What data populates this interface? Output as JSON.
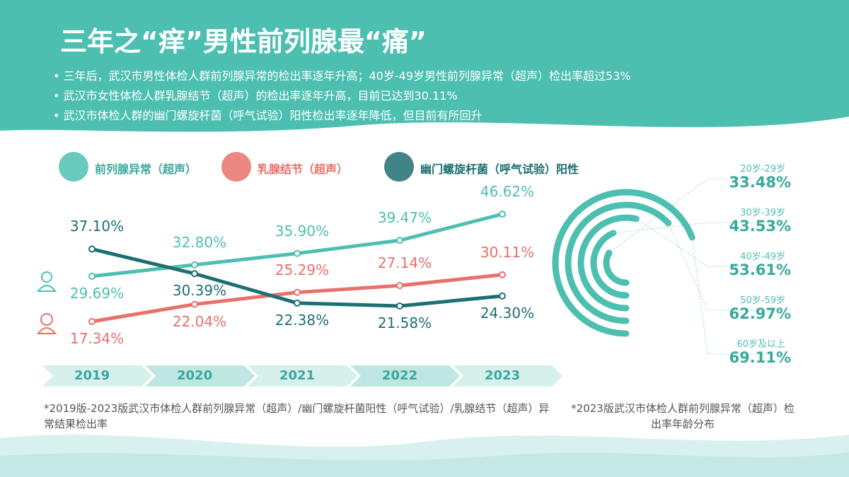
{
  "header": {
    "title": "三年之“痒”男性前列腺最“痛”",
    "bullets": [
      "三年后，武汉市男性体检人群前列腺异常的检出率逐年升高；40岁-49岁男性前列腺异常（超声）检出率超过53%",
      "武汉市女性体检人群乳腺结节（超声）的检出率逐年升高，目前已达到30.11%",
      "武汉市体检人群的幽门螺旋杆菌（呼气试验）阳性检出率逐年降低，但目前有所回升"
    ]
  },
  "chart_data": [
    {
      "type": "line",
      "note": "*2019版-2023版武汉市体检人群前列腺异常（超声）/幽门螺旋杆菌阳性（呼气试验）/乳腺结节（超声）异常结果检出率",
      "categories": [
        "2019",
        "2020",
        "2021",
        "2022",
        "2023"
      ],
      "series": [
        {
          "name": "前列腺异常（超声）",
          "color": "#4dbfb1",
          "values": [
            29.69,
            32.8,
            35.9,
            39.47,
            46.62
          ],
          "value_labels": [
            "29.69%",
            "32.80%",
            "35.90%",
            "39.47%",
            "46.62%"
          ]
        },
        {
          "name": "乳腺结节（超声）",
          "color": "#e8716b",
          "values": [
            17.34,
            22.04,
            25.29,
            27.14,
            30.11
          ],
          "value_labels": [
            "17.34%",
            "22.04%",
            "25.29%",
            "27.14%",
            "30.11%"
          ]
        },
        {
          "name": "幽门螺旋杆菌（呼气试验）阳性",
          "color": "#1e6f71",
          "values": [
            37.1,
            30.39,
            22.38,
            21.58,
            24.3
          ],
          "value_labels": [
            "37.10%",
            "30.39%",
            "22.38%",
            "21.58%",
            "24.30%"
          ]
        }
      ]
    },
    {
      "type": "radial-bar",
      "note": "*2023版武汉市体检人群前列腺异常（超声）检出率年龄分布",
      "color": "#4dbfb1",
      "categories": [
        "20岁-29岁",
        "30岁-39岁",
        "40岁-49岁",
        "50岁-59岁",
        "60岁及以上"
      ],
      "values": [
        33.48,
        43.53,
        53.61,
        62.97,
        69.11
      ],
      "value_labels": [
        "33.48%",
        "43.53%",
        "53.61%",
        "62.97%",
        "69.11%"
      ]
    }
  ]
}
